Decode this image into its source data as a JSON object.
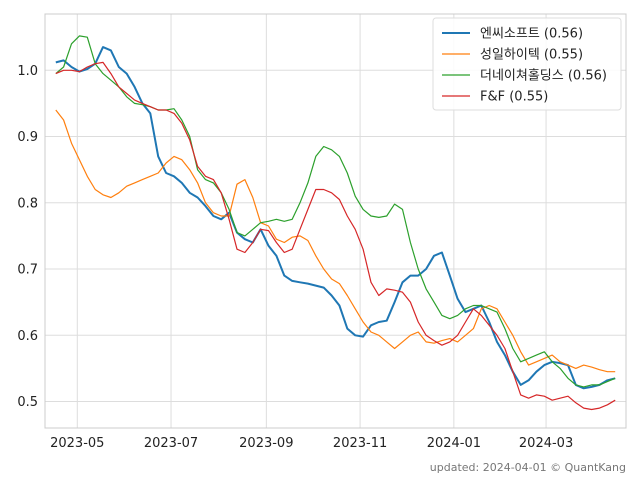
{
  "chart_data": {
    "type": "line",
    "title": "",
    "xlabel": "",
    "ylabel": "",
    "x_start": "2023-04-17",
    "x_end": "2024-04-15",
    "xlim": [
      "2023-04-10",
      "2024-04-22"
    ],
    "ylim": [
      0.46,
      1.085
    ],
    "x_ticks": [
      {
        "date": "2023-05-01",
        "label": "2023-05"
      },
      {
        "date": "2023-07-01",
        "label": "2023-07"
      },
      {
        "date": "2023-09-01",
        "label": "2023-09"
      },
      {
        "date": "2023-11-01",
        "label": "2023-11"
      },
      {
        "date": "2024-01-01",
        "label": "2024-01"
      },
      {
        "date": "2024-03-01",
        "label": "2024-03"
      }
    ],
    "y_ticks": [
      0.5,
      0.6,
      0.7,
      0.8,
      0.9,
      1.0
    ],
    "y_tick_labels": [
      "0.5",
      "0.6",
      "0.7",
      "0.8",
      "0.9",
      "1.0"
    ],
    "grid": true,
    "legend_position": "top-right",
    "series": [
      {
        "name": "엔씨소프트 (0.56)",
        "color": "#1f77b4",
        "values": [
          1.012,
          1.015,
          1.005,
          0.998,
          1.002,
          1.01,
          1.035,
          1.03,
          1.005,
          0.995,
          0.975,
          0.95,
          0.935,
          0.87,
          0.845,
          0.84,
          0.83,
          0.815,
          0.808,
          0.795,
          0.78,
          0.775,
          0.785,
          0.755,
          0.745,
          0.74,
          0.76,
          0.735,
          0.72,
          0.69,
          0.682,
          0.68,
          0.678,
          0.675,
          0.672,
          0.66,
          0.645,
          0.61,
          0.6,
          0.598,
          0.615,
          0.62,
          0.622,
          0.65,
          0.68,
          0.69,
          0.69,
          0.7,
          0.72,
          0.725,
          0.69,
          0.655,
          0.635,
          0.64,
          0.645,
          0.62,
          0.59,
          0.57,
          0.545,
          0.525,
          0.532,
          0.545,
          0.555,
          0.56,
          0.558,
          0.555,
          0.525,
          0.52,
          0.522,
          0.525,
          0.532,
          0.535
        ]
      },
      {
        "name": "성일하이텍 (0.55)",
        "color": "#ff7f0e",
        "values": [
          0.94,
          0.925,
          0.89,
          0.865,
          0.84,
          0.82,
          0.812,
          0.808,
          0.815,
          0.825,
          0.83,
          0.835,
          0.84,
          0.845,
          0.86,
          0.87,
          0.865,
          0.85,
          0.83,
          0.8,
          0.785,
          0.78,
          0.78,
          0.828,
          0.835,
          0.808,
          0.77,
          0.765,
          0.745,
          0.74,
          0.748,
          0.75,
          0.743,
          0.72,
          0.7,
          0.685,
          0.678,
          0.66,
          0.64,
          0.62,
          0.605,
          0.6,
          0.59,
          0.58,
          0.59,
          0.6,
          0.605,
          0.59,
          0.588,
          0.592,
          0.595,
          0.59,
          0.6,
          0.61,
          0.64,
          0.645,
          0.64,
          0.62,
          0.6,
          0.575,
          0.555,
          0.56,
          0.565,
          0.57,
          0.56,
          0.555,
          0.55,
          0.555,
          0.552,
          0.548,
          0.545,
          0.545
        ]
      },
      {
        "name": "더네이쳐홀딩스 (0.56)",
        "color": "#2ca02c",
        "values": [
          0.995,
          1.005,
          1.04,
          1.052,
          1.05,
          1.01,
          0.995,
          0.985,
          0.975,
          0.96,
          0.95,
          0.948,
          0.945,
          0.94,
          0.94,
          0.942,
          0.925,
          0.9,
          0.85,
          0.835,
          0.83,
          0.815,
          0.79,
          0.755,
          0.75,
          0.76,
          0.77,
          0.772,
          0.775,
          0.772,
          0.775,
          0.8,
          0.83,
          0.87,
          0.885,
          0.88,
          0.87,
          0.845,
          0.81,
          0.79,
          0.78,
          0.778,
          0.78,
          0.798,
          0.79,
          0.74,
          0.7,
          0.67,
          0.65,
          0.63,
          0.625,
          0.63,
          0.64,
          0.645,
          0.645,
          0.64,
          0.635,
          0.61,
          0.58,
          0.56,
          0.565,
          0.57,
          0.575,
          0.56,
          0.55,
          0.535,
          0.525,
          0.522,
          0.525,
          0.525,
          0.53,
          0.535
        ]
      },
      {
        "name": "F&F (0.55)",
        "color": "#d62728",
        "values": [
          0.995,
          1.0,
          1.0,
          0.998,
          1.005,
          1.01,
          1.012,
          0.995,
          0.975,
          0.965,
          0.955,
          0.95,
          0.945,
          0.94,
          0.94,
          0.935,
          0.92,
          0.895,
          0.855,
          0.84,
          0.835,
          0.815,
          0.775,
          0.73,
          0.725,
          0.74,
          0.76,
          0.758,
          0.74,
          0.725,
          0.73,
          0.76,
          0.79,
          0.82,
          0.82,
          0.815,
          0.805,
          0.78,
          0.76,
          0.73,
          0.68,
          0.66,
          0.67,
          0.668,
          0.665,
          0.65,
          0.62,
          0.6,
          0.592,
          0.585,
          0.59,
          0.6,
          0.62,
          0.64,
          0.63,
          0.615,
          0.6,
          0.58,
          0.545,
          0.51,
          0.505,
          0.51,
          0.508,
          0.502,
          0.505,
          0.508,
          0.498,
          0.49,
          0.488,
          0.49,
          0.495,
          0.502
        ]
      }
    ]
  },
  "footer": "updated: 2024-04-01 © QuantKang"
}
